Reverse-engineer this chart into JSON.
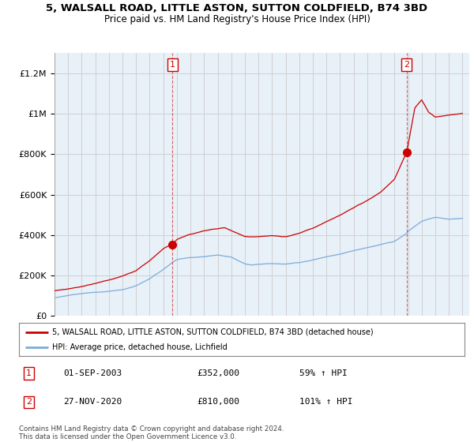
{
  "title": "5, WALSALL ROAD, LITTLE ASTON, SUTTON COLDFIELD, B74 3BD",
  "subtitle": "Price paid vs. HM Land Registry's House Price Index (HPI)",
  "legend_label_red": "5, WALSALL ROAD, LITTLE ASTON, SUTTON COLDFIELD, B74 3BD (detached house)",
  "legend_label_blue": "HPI: Average price, detached house, Lichfield",
  "annotation1_label": "1",
  "annotation1_date": "01-SEP-2003",
  "annotation1_price": "£352,000",
  "annotation1_hpi": "59% ↑ HPI",
  "annotation2_label": "2",
  "annotation2_date": "27-NOV-2020",
  "annotation2_price": "£810,000",
  "annotation2_hpi": "101% ↑ HPI",
  "footnote": "Contains HM Land Registry data © Crown copyright and database right 2024.\nThis data is licensed under the Open Government Licence v3.0.",
  "red_color": "#cc0000",
  "blue_color": "#7aacdc",
  "bg_fill_color": "#e8f0f8",
  "background_color": "#ffffff",
  "grid_color": "#cccccc",
  "ylim": [
    0,
    1300000
  ],
  "yticks": [
    0,
    200000,
    400000,
    600000,
    800000,
    1000000,
    1200000
  ],
  "ytick_labels": [
    "£0",
    "£200K",
    "£400K",
    "£600K",
    "£800K",
    "£1M",
    "£1.2M"
  ],
  "sale1_x": 2003.67,
  "sale1_y": 352000,
  "sale2_x": 2020.9,
  "sale2_y": 810000,
  "xmin": 1995,
  "xmax": 2025.5
}
